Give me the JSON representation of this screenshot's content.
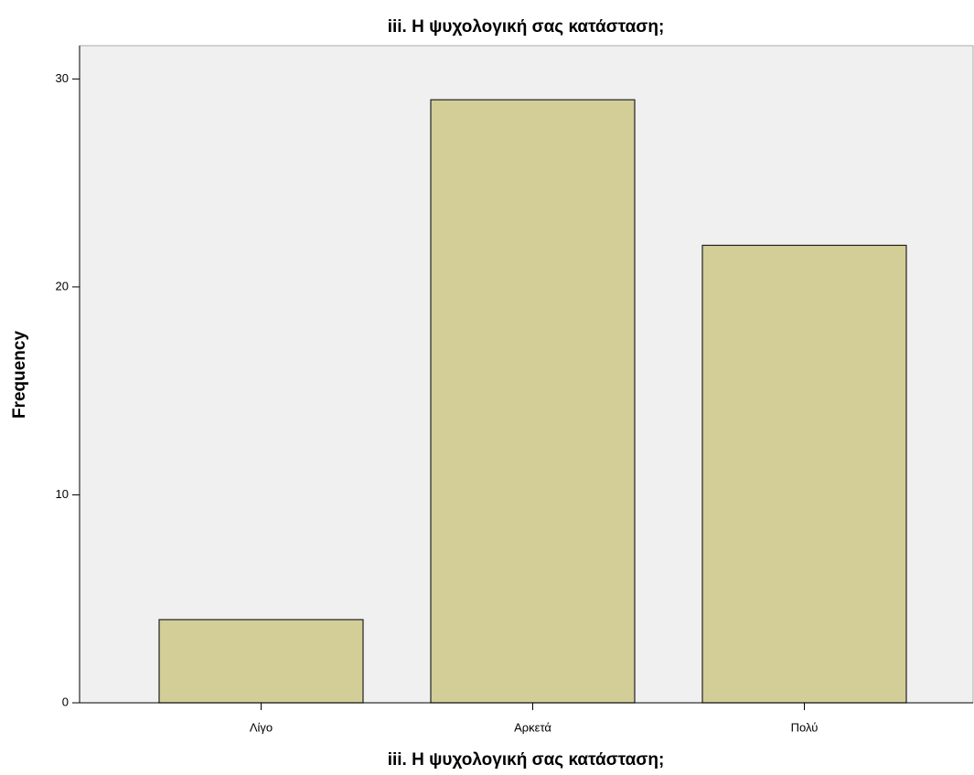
{
  "chart_data": {
    "type": "bar",
    "title": "iii. Η ψυχολογική σας κατάσταση;",
    "x_label": "iii. Η ψυχολογική σας κατάσταση;",
    "y_label": "Frequency",
    "categories": [
      "Λίγο",
      "Αρκετά",
      "Πολύ"
    ],
    "values": [
      4,
      29,
      22
    ],
    "color": "#d3ce97",
    "ylim": [
      0,
      31.6
    ],
    "yticks": [
      0,
      10,
      20,
      30
    ],
    "grid": false
  }
}
